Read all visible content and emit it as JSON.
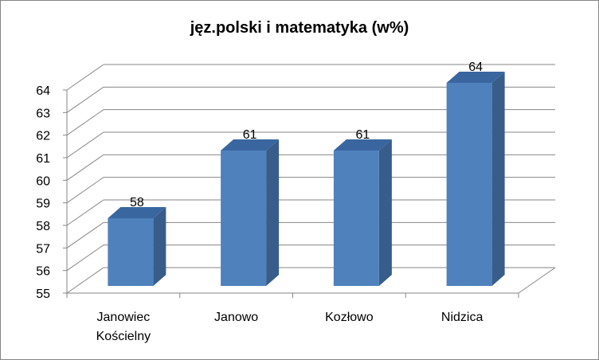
{
  "chart_data": {
    "type": "bar",
    "title": "jęz.polski i matematyka (w%)",
    "categories": [
      [
        "Janowiec",
        "Kościelny"
      ],
      [
        "Janowo"
      ],
      [
        "Kozłowo"
      ],
      [
        "Nidzica"
      ]
    ],
    "values": [
      58,
      61,
      61,
      64
    ],
    "data_labels": [
      "58",
      "61",
      "61",
      "64"
    ],
    "ylim": [
      55,
      64
    ],
    "yticks": [
      "55",
      "56",
      "57",
      "58",
      "59",
      "60",
      "61",
      "62",
      "63",
      "64"
    ],
    "xlabel": "",
    "ylabel": "",
    "grid": true,
    "legend": "none",
    "style": "3d-column",
    "colors": {
      "bar_front": "#4F81BD",
      "bar_side": "#385D8A",
      "bar_top": "#3A66A0",
      "grid": "#868686",
      "axis": "#868686"
    }
  }
}
